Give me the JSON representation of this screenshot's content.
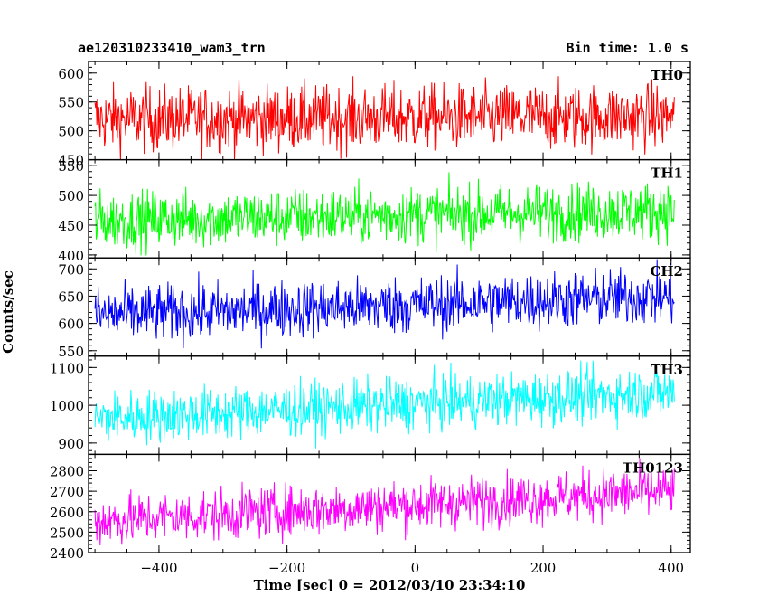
{
  "header": {
    "title": "ae120310233410_wam3_trn",
    "bin_time": "Bin time: 1.0 s"
  },
  "chart_data": {
    "type": "line",
    "xlabel": "Time [sec] 0 = 2012/03/10 23:34:10",
    "ylabel": "Counts/sec",
    "xlim": [
      -510,
      430
    ],
    "xticks": [
      -400,
      -200,
      0,
      200,
      400
    ],
    "x_range": [
      -500,
      405
    ],
    "grid": false,
    "panels": [
      {
        "name": "TH0",
        "color": "#ff0000",
        "ylim": [
          450,
          620
        ],
        "yticks": [
          450,
          500,
          550,
          600
        ],
        "trend_start": 520,
        "trend_end": 525,
        "noise": 28
      },
      {
        "name": "TH1",
        "color": "#00ff00",
        "ylim": [
          395,
          560
        ],
        "yticks": [
          400,
          450,
          500,
          550
        ],
        "trend_start": 458,
        "trend_end": 475,
        "noise": 24
      },
      {
        "name": "CH2",
        "color": "#0000ff",
        "ylim": [
          540,
          720
        ],
        "yticks": [
          550,
          600,
          650,
          700
        ],
        "trend_start": 615,
        "trend_end": 650,
        "noise": 26
      },
      {
        "name": "TH3",
        "color": "#00ffff",
        "ylim": [
          870,
          1130
        ],
        "yticks": [
          900,
          1000,
          1100
        ],
        "trend_start": 965,
        "trend_end": 1035,
        "noise": 35
      },
      {
        "name": "TH0123",
        "color": "#ff00ff",
        "ylim": [
          2400,
          2880
        ],
        "yticks": [
          2400,
          2500,
          2600,
          2700,
          2800
        ],
        "trend_start": 2555,
        "trend_end": 2700,
        "noise": 62
      }
    ]
  }
}
